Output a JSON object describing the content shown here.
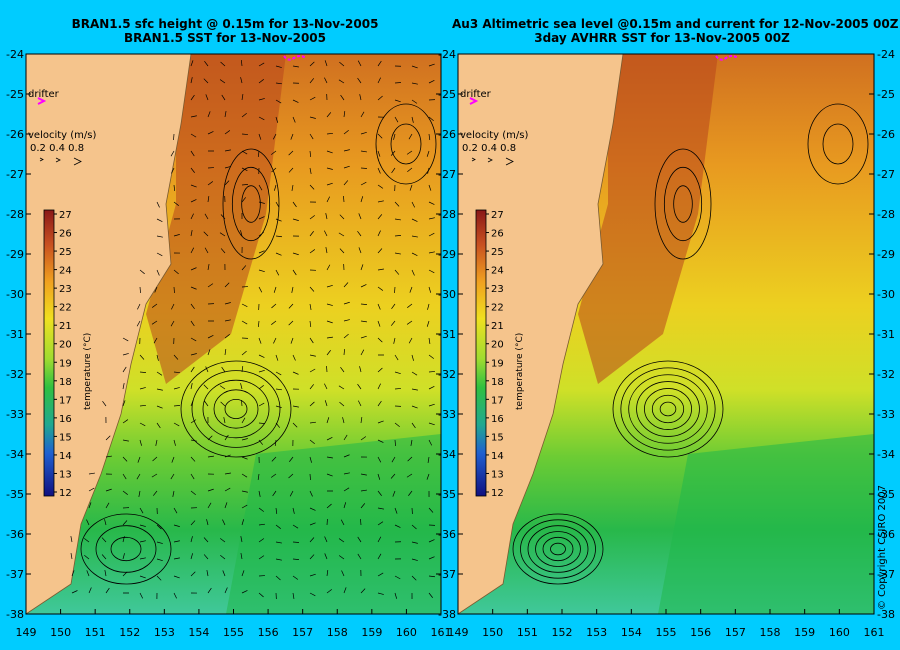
{
  "panels": [
    {
      "id": "left",
      "title_line1": "BRAN1.5 sfc height @ 0.15m for 13-Nov-2005",
      "title_line2": "BRAN1.5 SST for 13-Nov-2005"
    },
    {
      "id": "right",
      "title_line1": "Au3 Altimetric sea level  @0.15m and current for 12-Nov-2005 00Z",
      "title_line2": "3day AVHRR SST for 13-Nov-2005 00Z"
    }
  ],
  "x_ticks": [
    "149",
    "150",
    "151",
    "152",
    "153",
    "154",
    "155",
    "156",
    "157",
    "158",
    "159",
    "160",
    "161"
  ],
  "y_ticks": [
    "-24",
    "-25",
    "-26",
    "-27",
    "-28",
    "-29",
    "-30",
    "-31",
    "-32",
    "-33",
    "-34",
    "-35",
    "-36",
    "-37",
    "-38"
  ],
  "legend": {
    "drifter_label": "drifter",
    "velocity_title": "velocity (m/s)",
    "velocity_values": "0.2 0.4 0.8",
    "colorbar_title": "temperature (°C)",
    "colorbar_ticks": [
      "27",
      "26",
      "25",
      "24",
      "23",
      "22",
      "21",
      "20",
      "19",
      "18",
      "17",
      "16",
      "15",
      "14",
      "13",
      "12"
    ]
  },
  "copyright": "© Copyright CSIRO 2007",
  "colors": {
    "background": "#00ccff",
    "land": "#f5c48c",
    "warm": "#b8461c",
    "cool": "#20b84a",
    "drifter": "#ff00ff"
  }
}
